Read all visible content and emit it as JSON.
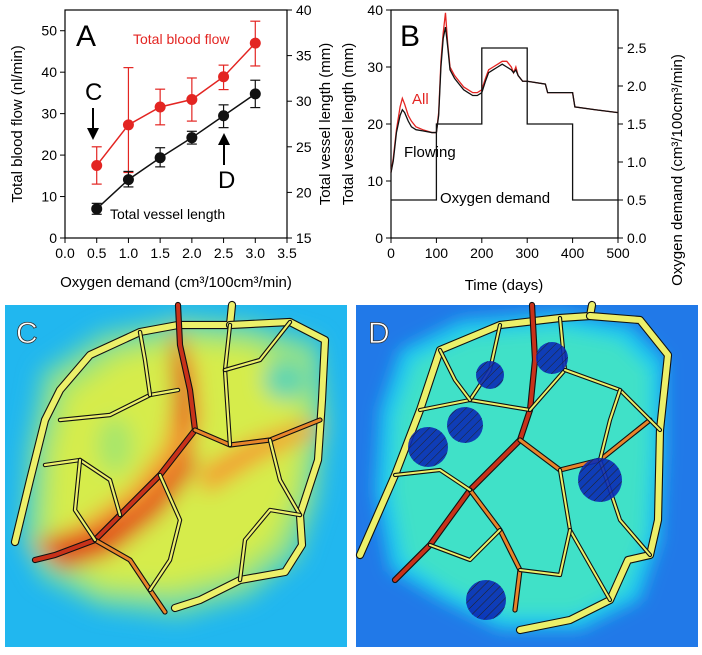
{
  "chart_data": [
    {
      "type": "line",
      "panel": "A",
      "xlabel": "Oxygen demand (cm³/100cm³/min)",
      "ylabel_left": "Total blood flow (nl/min)",
      "ylabel_right": "Total vessel length (mm)",
      "xlim": [
        0.0,
        3.5
      ],
      "ylim_left": [
        0,
        55
      ],
      "ylim_right": [
        15,
        40
      ],
      "x_ticks": [
        "0.0",
        "0.5",
        "1.0",
        "1.5",
        "2.0",
        "2.5",
        "3.0",
        "3.5"
      ],
      "y_left_ticks": [
        "0",
        "10",
        "20",
        "30",
        "40",
        "50"
      ],
      "y_right_ticks": [
        "15",
        "20",
        "25",
        "30",
        "35",
        "40"
      ],
      "series": [
        {
          "name": "Total blood flow",
          "axis": "left",
          "color": "#e32522",
          "x": [
            0.5,
            1.0,
            1.5,
            2.0,
            2.5,
            3.0
          ],
          "y": [
            17.5,
            27.3,
            31.6,
            33.4,
            38.9,
            47.0
          ],
          "err_low": [
            4.5,
            11.5,
            4.3,
            5.2,
            3.1,
            5.5
          ],
          "err_high": [
            4.5,
            13.8,
            4.3,
            5.2,
            2.8,
            5.3
          ]
        },
        {
          "name": "Total vessel length",
          "axis": "right",
          "color": "#111111",
          "x": [
            0.5,
            1.0,
            1.5,
            2.0,
            2.5,
            3.0
          ],
          "y": [
            18.2,
            21.4,
            23.8,
            26.0,
            28.4,
            30.8
          ],
          "err_low": [
            0.6,
            0.8,
            1.0,
            0.7,
            1.3,
            1.5
          ],
          "err_high": [
            0.6,
            0.9,
            1.1,
            0.7,
            1.2,
            1.5
          ]
        }
      ],
      "annotations": [
        {
          "text": "C",
          "at_x": 0.5
        },
        {
          "text": "D",
          "at_x": 2.5
        }
      ]
    },
    {
      "type": "line",
      "panel": "B",
      "xlabel": "Time (days)",
      "ylabel_left": "Total vessel length (mm)",
      "ylabel_right": "Oxygen demand (cm³/100cm³/min)",
      "xlim": [
        0,
        500
      ],
      "ylim_left": [
        0,
        40
      ],
      "ylim_right": [
        0,
        3.0
      ],
      "x_ticks": [
        "0",
        "100",
        "200",
        "300",
        "400",
        "500"
      ],
      "y_left_ticks": [
        "0",
        "10",
        "20",
        "30",
        "40"
      ],
      "y_right_ticks": [
        "0.0",
        "0.5",
        "1.0",
        "1.5",
        "2.0",
        "2.5"
      ],
      "series": [
        {
          "name": "All",
          "axis": "left",
          "color": "#e32522",
          "x": [
            0,
            5,
            12,
            20,
            25,
            30,
            38,
            45,
            55,
            70,
            90,
            100,
            105,
            110,
            115,
            120,
            125,
            130,
            140,
            150,
            160,
            170,
            180,
            190,
            200,
            208,
            215,
            225,
            235,
            245,
            255,
            265,
            270,
            275,
            280,
            290,
            300,
            340,
            345,
            400,
            405,
            450,
            500
          ],
          "y": [
            11.5,
            14,
            19,
            23,
            24.5,
            23.5,
            21.5,
            20.5,
            19.5,
            19,
            18.5,
            18.5,
            22,
            31,
            36,
            39.5,
            34,
            30,
            28.5,
            27.5,
            26.5,
            26,
            25.5,
            25.5,
            26,
            28,
            29.5,
            30,
            30.5,
            31,
            31,
            30,
            29,
            30,
            28.5,
            27.5,
            27.5,
            27,
            25.5,
            25.5,
            23,
            22.5,
            22
          ]
        },
        {
          "name": "Flowing",
          "axis": "left",
          "color": "#111111",
          "x": [
            0,
            5,
            12,
            20,
            25,
            30,
            38,
            45,
            55,
            70,
            90,
            100,
            105,
            110,
            115,
            120,
            125,
            130,
            140,
            150,
            160,
            170,
            180,
            190,
            200,
            208,
            215,
            225,
            235,
            245,
            255,
            265,
            270,
            275,
            280,
            290,
            300,
            340,
            345,
            400,
            405,
            450,
            500
          ],
          "y": [
            11.5,
            13.5,
            18.5,
            21.5,
            22.5,
            22,
            20.5,
            19.5,
            19,
            18.8,
            18.5,
            18.5,
            21.5,
            30,
            35,
            37,
            33.5,
            29.5,
            28,
            27,
            26,
            25.5,
            25,
            25,
            25.5,
            27.5,
            29,
            29.5,
            30,
            30.5,
            30,
            29.5,
            29,
            29.5,
            28.5,
            27.5,
            27.5,
            27,
            25.5,
            25.5,
            23,
            22.5,
            22
          ]
        },
        {
          "name": "Oxygen demand",
          "axis": "right",
          "type": "step",
          "color": "#111111",
          "x": [
            0,
            100,
            200,
            300,
            400,
            500
          ],
          "y": [
            0.5,
            1.5,
            2.5,
            1.5,
            0.5,
            0.5
          ]
        }
      ],
      "annotations": [
        {
          "text": "All"
        },
        {
          "text": "Flowing"
        },
        {
          "text": "Oxygen demand"
        }
      ]
    }
  ],
  "panels": {
    "a": {
      "letter": "A",
      "legend_flow": "Total blood flow",
      "legend_length": "Total vessel length",
      "arrow_c": "C",
      "arrow_d": "D"
    },
    "b": {
      "letter": "B",
      "label_all": "All",
      "label_flowing": "Flowing",
      "label_demand": "Oxygen demand"
    },
    "c": {
      "letter": "C"
    },
    "d": {
      "letter": "D"
    }
  },
  "colors": {
    "red": "#e32522",
    "black": "#111111"
  }
}
